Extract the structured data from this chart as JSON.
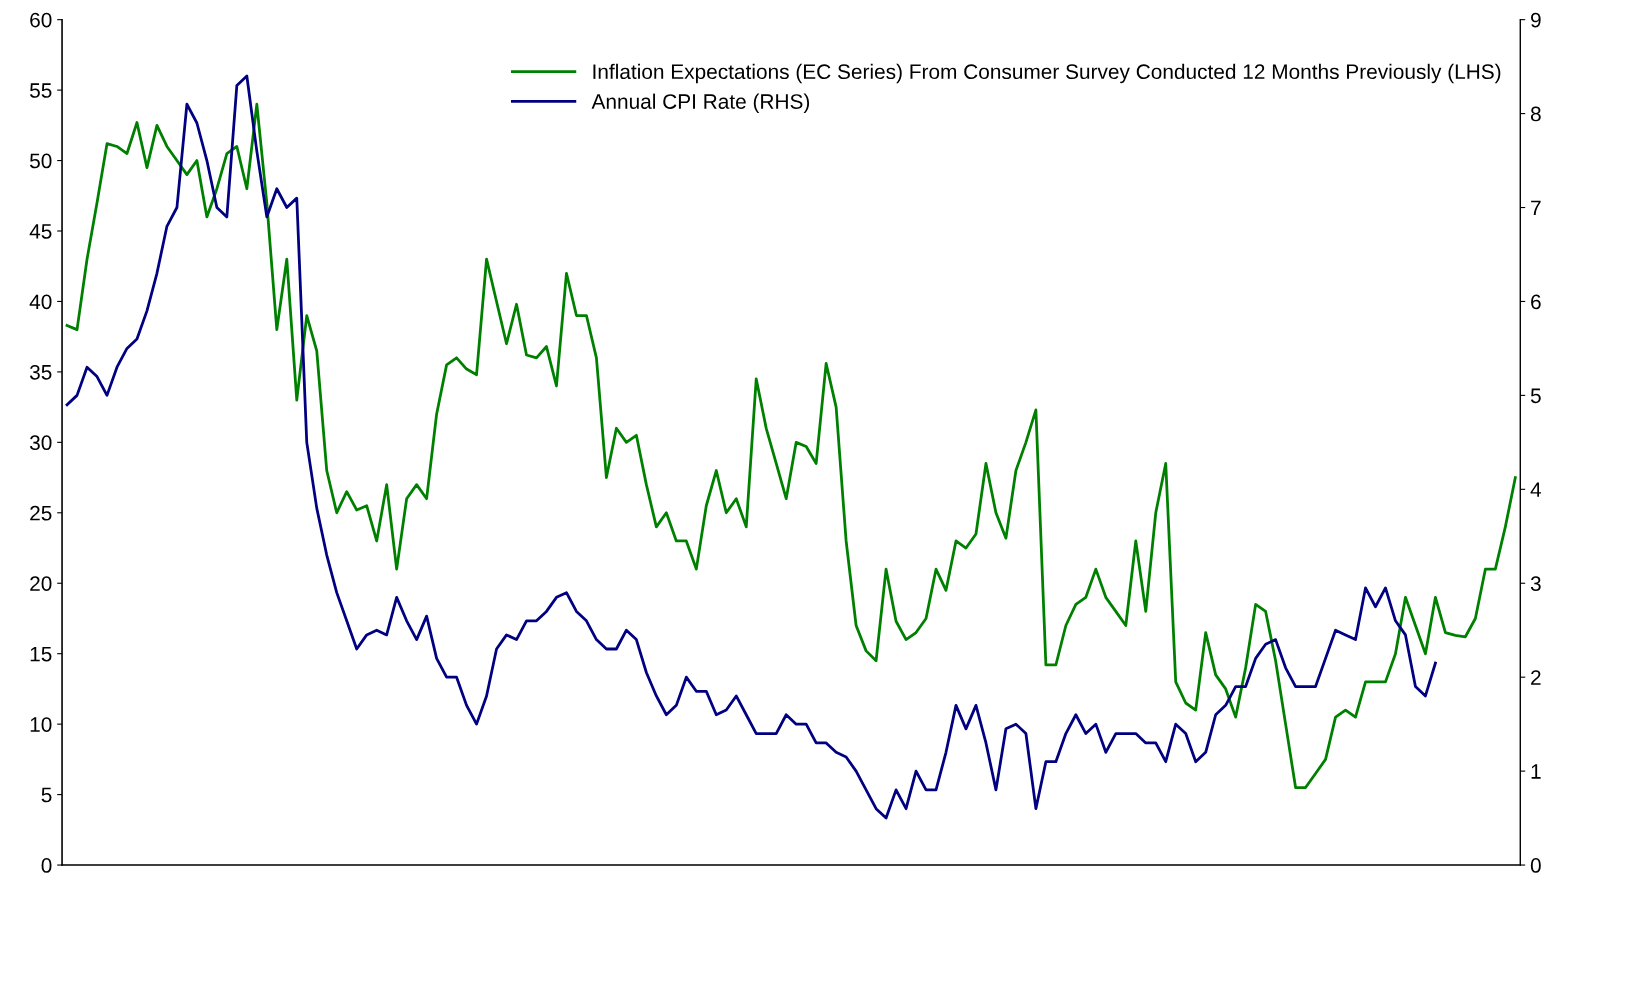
{
  "chart_data": {
    "type": "line",
    "categories": [
      null,
      null,
      null,
      null,
      null,
      null,
      null,
      null,
      null,
      null,
      null,
      null,
      null,
      null,
      null,
      null,
      null,
      null,
      null,
      null,
      null,
      null,
      null,
      null,
      null,
      null,
      null,
      null,
      null,
      null,
      null,
      null,
      null,
      null,
      null,
      null,
      null,
      null,
      null,
      null,
      null,
      null,
      null,
      null,
      null,
      null,
      null,
      null,
      null,
      null,
      null,
      null,
      null,
      null,
      null,
      null,
      null,
      null,
      null,
      null,
      null,
      null,
      null,
      null,
      null,
      null,
      null,
      null,
      null,
      null,
      null,
      null,
      null,
      null,
      null,
      null,
      null,
      null,
      null,
      null,
      null,
      null,
      null,
      null,
      null,
      null,
      null,
      null,
      null,
      null,
      null,
      null,
      null,
      null,
      null,
      null,
      null,
      null,
      null,
      null,
      null,
      null,
      null,
      null,
      null,
      null,
      null,
      null,
      null,
      null,
      null,
      null,
      null,
      null,
      null,
      null,
      null,
      null,
      null,
      null,
      null,
      null,
      null,
      null,
      null,
      null,
      null,
      null,
      null,
      null,
      null,
      null,
      null,
      null,
      null,
      null,
      null,
      null,
      null,
      null,
      null,
      null,
      null,
      null,
      null,
      null
    ],
    "series": [
      {
        "name": "Inflation Expectations (EC Series) From Consumer Survey Conducted 12 Months Previously (LHS)",
        "color": "#008000",
        "values": [
          38.3,
          38,
          43,
          47,
          51.2,
          51,
          50.5,
          52.7,
          49.5,
          52.5,
          51,
          50,
          49,
          50,
          46,
          48,
          50.5,
          51,
          48,
          54,
          47,
          38,
          43,
          33,
          39,
          36.5,
          28,
          25,
          26.5,
          25.2,
          25.5,
          23,
          27,
          21,
          26,
          27,
          26,
          32,
          35.5,
          36,
          35.2,
          34.8,
          43,
          40,
          37,
          39.8,
          36.2,
          36,
          36.8,
          34,
          42,
          39,
          39,
          36,
          27.5,
          31,
          30,
          30.5,
          27,
          24,
          25,
          23,
          23,
          21,
          25.5,
          28,
          25,
          26,
          24,
          34.5,
          31,
          28.5,
          26,
          30,
          29.7,
          28.5,
          35.6,
          32.5,
          23,
          17,
          15.2,
          14.5,
          21,
          17.3,
          16,
          16.5,
          17.5,
          21,
          19.5,
          23,
          22.5,
          23.5,
          28.5,
          25,
          23.2,
          28,
          30,
          32.3,
          14.2,
          14.2,
          17,
          18.5,
          19,
          21,
          19,
          18,
          17,
          23,
          18,
          25,
          28.5,
          13,
          11.5,
          11,
          16.5,
          13.5,
          12.5,
          10.5,
          14,
          18.5,
          18,
          14.5,
          10,
          5.5,
          5.5,
          6.5,
          7.5,
          10.5,
          11,
          10.5,
          13,
          13,
          13,
          15,
          19,
          17,
          15,
          19,
          16.5,
          16.3,
          16.2,
          17.5,
          21,
          21,
          24,
          27.5
        ]
      },
      {
        "name": "Annual CPI Rate (RHS)",
        "color": "#000080",
        "axis": "y2",
        "values": [
          4.9,
          5.0,
          5.3,
          5.2,
          5.0,
          5.3,
          5.5,
          5.6,
          5.9,
          6.3,
          6.8,
          7.0,
          8.1,
          7.9,
          7.5,
          7.0,
          6.9,
          8.3,
          8.4,
          7.6,
          6.9,
          7.2,
          7.0,
          7.1,
          4.5,
          3.8,
          3.3,
          2.9,
          2.6,
          2.3,
          2.45,
          2.5,
          2.45,
          2.85,
          2.6,
          2.4,
          2.65,
          2.2,
          2.0,
          2.0,
          1.7,
          1.5,
          1.8,
          2.3,
          2.45,
          2.4,
          2.6,
          2.6,
          2.7,
          2.85,
          2.9,
          2.7,
          2.6,
          2.4,
          2.3,
          2.3,
          2.5,
          2.4,
          2.05,
          1.8,
          1.6,
          1.7,
          2.0,
          1.85,
          1.85,
          1.6,
          1.65,
          1.8,
          1.6,
          1.4,
          1.4,
          1.4,
          1.6,
          1.5,
          1.5,
          1.3,
          1.3,
          1.2,
          1.15,
          1.0,
          0.8,
          0.6,
          0.5,
          0.8,
          0.6,
          1.0,
          0.8,
          0.8,
          1.2,
          1.7,
          1.45,
          1.7,
          1.3,
          0.8,
          1.45,
          1.5,
          1.4,
          0.6,
          1.1,
          1.1,
          1.4,
          1.6,
          1.4,
          1.5,
          1.2,
          1.4,
          1.4,
          1.4,
          1.3,
          1.3,
          1.1,
          1.5,
          1.4,
          1.1,
          1.2,
          1.6,
          1.7,
          1.9,
          1.9,
          2.2,
          2.35,
          2.4,
          2.1,
          1.9,
          1.9,
          1.9,
          2.2,
          2.5,
          2.45,
          2.4,
          2.95,
          2.75,
          2.95,
          2.6,
          2.45,
          1.9,
          1.8,
          2.15,
          null,
          null,
          null,
          null,
          null,
          null,
          null,
          null
        ]
      }
    ],
    "ylim": [
      0,
      60
    ],
    "yticks": [
      0,
      5,
      10,
      15,
      20,
      25,
      30,
      35,
      40,
      45,
      50,
      55,
      60
    ],
    "y2lim": [
      0,
      9
    ],
    "y2ticks": [
      0,
      1,
      2,
      3,
      4,
      5,
      6,
      7,
      8,
      9
    ],
    "legend": "top right",
    "grid": false
  }
}
